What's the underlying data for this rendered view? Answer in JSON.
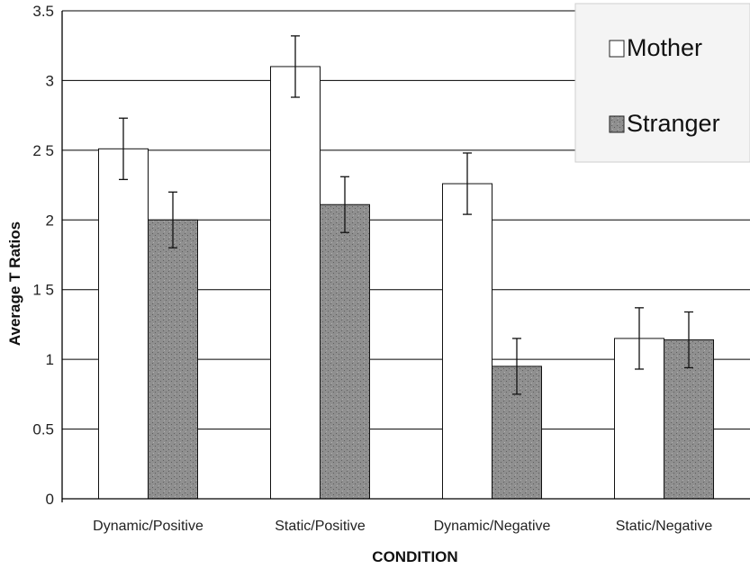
{
  "chart_data": {
    "type": "bar",
    "title": "",
    "xlabel": "CONDITION",
    "ylabel": "Average T Ratios",
    "categories": [
      "Dynamic/Positive",
      "Static/Positive",
      "Dynamic/Negative",
      "Static/Negative"
    ],
    "series": [
      {
        "name": "Mother",
        "values": [
          2.51,
          3.1,
          2.26,
          1.15
        ],
        "error": [
          0.22,
          0.22,
          0.22,
          0.22
        ],
        "color": "#ffffff"
      },
      {
        "name": "Stranger",
        "values": [
          2.0,
          2.11,
          0.95,
          1.14
        ],
        "error": [
          0.2,
          0.2,
          0.2,
          0.2
        ],
        "color": "#8f8f8f"
      }
    ],
    "ylim": [
      0,
      3.5
    ],
    "yticks": [
      {
        "value": 0,
        "label": "0"
      },
      {
        "value": 0.5,
        "label": "0.5"
      },
      {
        "value": 1,
        "label": "1"
      },
      {
        "value": 1.5,
        "label": "1 5"
      },
      {
        "value": 2,
        "label": "2"
      },
      {
        "value": 2.5,
        "label": "2 5"
      },
      {
        "value": 3,
        "label": "3"
      },
      {
        "value": 3.5,
        "label": "3.5"
      }
    ],
    "grid": true,
    "legend_position": "top-right"
  }
}
